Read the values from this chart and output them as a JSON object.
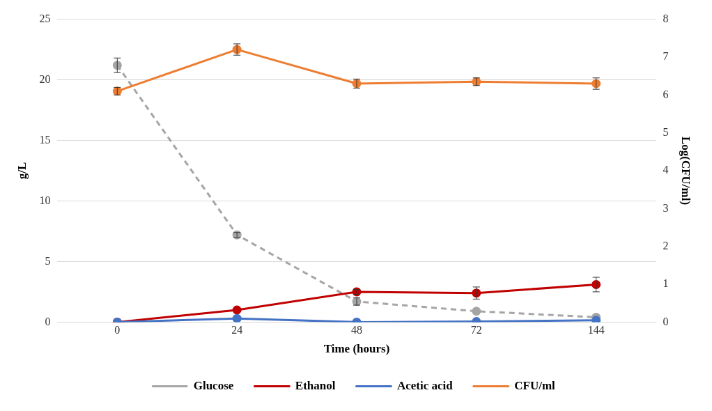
{
  "chart_data": {
    "type": "line",
    "xlabel": "Time (hours)",
    "ylabel": "g/L",
    "y2label": "Log(CFU/ml)",
    "categories": [
      "0",
      "24",
      "48",
      "72",
      "144"
    ],
    "series": [
      {
        "name": "Glucose",
        "color": "#a5a5a5",
        "line_style": "dashed",
        "values": [
          21.2,
          7.2,
          1.7,
          0.9,
          0.4
        ],
        "errors": [
          0.6,
          0.2,
          0.3,
          null,
          null
        ]
      },
      {
        "name": "Ethanol",
        "color": "#c00000",
        "values": [
          0,
          1.0,
          2.5,
          2.4,
          3.1
        ],
        "errors": [
          null,
          null,
          0.2,
          0.5,
          0.6
        ]
      },
      {
        "name": "Acetic acid",
        "color": "#4472c4",
        "values": [
          0,
          0.3,
          0,
          0.05,
          0.15
        ]
      },
      {
        "name": "CFU/ml",
        "color": "#ed7d31",
        "axis": "y2",
        "values": [
          6.1,
          7.2,
          6.3,
          6.35,
          6.3
        ],
        "errors": [
          0.1,
          0.15,
          0.12,
          0.1,
          0.15
        ]
      }
    ],
    "ylim": [
      0,
      25
    ],
    "yticks": [
      0,
      5,
      10,
      15,
      20,
      25
    ],
    "y2lim": [
      0,
      8
    ],
    "y2ticks": [
      0,
      1,
      2,
      3,
      4,
      5,
      6,
      7,
      8
    ],
    "grid": "y",
    "legend": "bottom",
    "marker": "circle"
  }
}
